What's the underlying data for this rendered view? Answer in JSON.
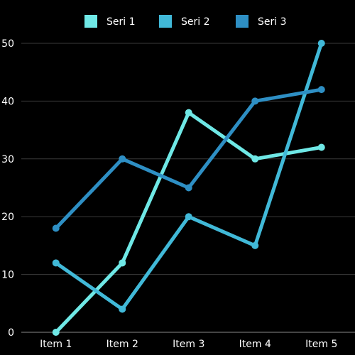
{
  "chart_data": {
    "type": "line",
    "categories": [
      "Item 1",
      "Item 2",
      "Item 3",
      "Item 4",
      "Item 5"
    ],
    "series": [
      {
        "name": "Seri 1",
        "color": "#6fe8e6",
        "values": [
          0,
          12,
          38,
          30,
          32
        ]
      },
      {
        "name": "Seri 2",
        "color": "#41b9d8",
        "values": [
          12,
          4,
          20,
          15,
          50
        ]
      },
      {
        "name": "Seri 3",
        "color": "#2e8fc4",
        "values": [
          18,
          30,
          25,
          40,
          42
        ]
      }
    ],
    "yticks": [
      "0",
      "10",
      "20",
      "30",
      "40",
      "50"
    ],
    "ylim": [
      0,
      50
    ],
    "grid": true,
    "legend_position": "top-center",
    "background": "#000000"
  }
}
